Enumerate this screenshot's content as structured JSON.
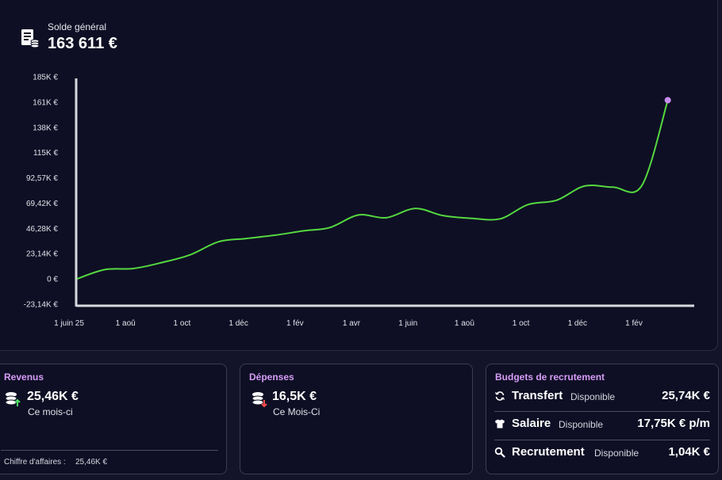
{
  "balance": {
    "label": "Solde général",
    "value": "163 611 €",
    "icon": "ledger-coins-icon"
  },
  "chart_data": {
    "type": "line",
    "title": "",
    "xlabel": "",
    "ylabel": "",
    "y_ticks": [
      "185K €",
      "161K €",
      "138K €",
      "115K €",
      "92,57K €",
      "69,42K €",
      "46,28K €",
      "23,14K €",
      "0 €",
      "-23,14K €"
    ],
    "x_ticks": [
      "1 juin 25",
      "1 aoû",
      "1 oct",
      "1 déc",
      "1 fév",
      "1 avr",
      "1 juin",
      "1 aoû",
      "1 oct",
      "1 déc",
      "1 fév"
    ],
    "ylim": [
      -23140,
      185000
    ],
    "grid": false,
    "line_color": "#55d840",
    "endpoint_color": "#c78ef0",
    "series": [
      {
        "x": [
          "2025-06-01",
          "2025-07-01",
          "2025-08-01",
          "2025-09-01",
          "2025-10-01",
          "2025-11-01",
          "2025-12-01",
          "2026-01-01",
          "2026-02-01",
          "2026-03-01",
          "2026-04-01",
          "2026-05-01",
          "2026-06-01",
          "2026-07-01",
          "2026-08-01",
          "2026-09-01",
          "2026-10-01",
          "2026-11-01",
          "2026-12-01",
          "2027-01-01",
          "2027-02-01",
          "2027-03-01"
        ],
        "y": [
          0,
          8500,
          9500,
          15000,
          22000,
          34000,
          37000,
          40000,
          44000,
          47000,
          58500,
          56000,
          64500,
          58000,
          55500,
          55000,
          68000,
          72000,
          85000,
          84000,
          85500,
          163611
        ]
      }
    ]
  },
  "cards": {
    "revenue": {
      "title": "Revenus",
      "amount": "25,46K €",
      "sub": "Ce mois-ci",
      "footer_label": "Chiffre d'affaires :",
      "footer_value": "25,46K €",
      "icon": "coins-up-icon",
      "arrow_color": "#4cd964"
    },
    "expenses": {
      "title": "Dépenses",
      "amount": "16,5K €",
      "sub": "Ce Mois-Ci",
      "icon": "coins-down-icon",
      "arrow_color": "#ff4b4b"
    },
    "budgets": {
      "title": "Budgets de recrutement",
      "rows": [
        {
          "name": "Transfert",
          "status": "Disponible",
          "value": "25,74K €",
          "icon": "refresh-icon"
        },
        {
          "name": "Salaire",
          "status": "Disponible",
          "value": "17,75K € p/m",
          "icon": "shirt-icon"
        },
        {
          "name": "Recrutement",
          "status": "Disponible",
          "value": "1,04K €",
          "icon": "search-icon"
        }
      ]
    }
  }
}
